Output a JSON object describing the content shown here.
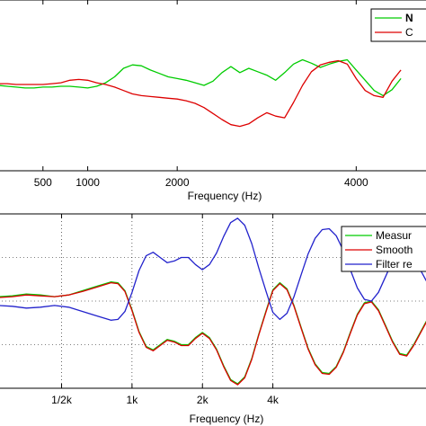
{
  "chart_data": [
    {
      "type": "line",
      "xlabel": "Frequency (Hz)",
      "ylabel": "",
      "xlim": [
        0,
        4800
      ],
      "ylim": [
        -10,
        10
      ],
      "grid": false,
      "legend": "top-right",
      "x_ticks": [
        {
          "value": 500,
          "label": "500"
        },
        {
          "value": 1000,
          "label": "1000"
        },
        {
          "value": 2000,
          "label": "2000"
        },
        {
          "value": 4000,
          "label": "4000"
        }
      ],
      "series": [
        {
          "name": "N",
          "color": "#00cc00",
          "x": [
            0,
            100,
            200,
            300,
            400,
            500,
            600,
            700,
            800,
            900,
            1000,
            1100,
            1200,
            1300,
            1400,
            1500,
            1600,
            1700,
            1800,
            1900,
            2000,
            2100,
            2200,
            2300,
            2400,
            2500,
            2600,
            2700,
            2800,
            2900,
            3000,
            3100,
            3200,
            3300,
            3400,
            3500,
            3600,
            3700,
            3800,
            3900,
            4000,
            4100,
            4200,
            4300,
            4400,
            4500
          ],
          "y": [
            0,
            -0.1,
            -0.2,
            -0.3,
            -0.3,
            -0.2,
            -0.2,
            -0.1,
            -0.1,
            -0.2,
            -0.3,
            -0.1,
            0.3,
            1.0,
            2.0,
            2.4,
            2.3,
            1.8,
            1.4,
            1.0,
            0.8,
            0.6,
            0.3,
            0.0,
            0.5,
            1.5,
            2.2,
            1.5,
            2.0,
            1.6,
            1.2,
            0.6,
            1.5,
            2.5,
            3.0,
            2.6,
            2.1,
            2.5,
            2.8,
            3.0,
            1.8,
            0.6,
            -0.6,
            -1.2,
            -0.5,
            0.8
          ]
        },
        {
          "name": "C",
          "color": "#dd0000",
          "x": [
            0,
            100,
            200,
            300,
            400,
            500,
            600,
            700,
            800,
            900,
            1000,
            1100,
            1200,
            1300,
            1400,
            1500,
            1600,
            1700,
            1800,
            1900,
            2000,
            2100,
            2200,
            2300,
            2400,
            2500,
            2600,
            2700,
            2800,
            2900,
            3000,
            3100,
            3200,
            3300,
            3400,
            3500,
            3600,
            3700,
            3800,
            3900,
            4000,
            4100,
            4200,
            4300,
            4400,
            4500
          ],
          "y": [
            0.2,
            0.2,
            0.1,
            0.1,
            0.1,
            0.1,
            0.2,
            0.3,
            0.6,
            0.7,
            0.6,
            0.3,
            0.1,
            -0.2,
            -0.6,
            -1.0,
            -1.2,
            -1.3,
            -1.4,
            -1.5,
            -1.6,
            -1.8,
            -2.1,
            -2.6,
            -3.3,
            -4.0,
            -4.6,
            -4.8,
            -4.5,
            -3.8,
            -3.2,
            -3.6,
            -3.8,
            -2.0,
            0.0,
            1.6,
            2.4,
            2.7,
            2.9,
            2.5,
            0.8,
            -0.6,
            -1.2,
            -1.4,
            0.5,
            1.8
          ]
        }
      ]
    },
    {
      "type": "line",
      "xlabel": "Frequency (Hz)",
      "ylabel": "",
      "xlim": [
        0.1,
        6.2
      ],
      "ylim": [
        -10,
        10
      ],
      "grid": true,
      "legend": "top-right",
      "x_ticks": [
        {
          "value": 1.0,
          "label": "1/2k"
        },
        {
          "value": 2.0,
          "label": "1k"
        },
        {
          "value": 3.0,
          "label": "2k"
        },
        {
          "value": 4.0,
          "label": "4k"
        }
      ],
      "series": [
        {
          "name": "Measur",
          "color": "#00cc00",
          "x": [
            0.1,
            0.3,
            0.5,
            0.7,
            0.9,
            1.1,
            1.3,
            1.5,
            1.7,
            1.8,
            1.9,
            2.0,
            2.1,
            2.2,
            2.3,
            2.4,
            2.5,
            2.6,
            2.7,
            2.8,
            2.9,
            3.0,
            3.1,
            3.2,
            3.3,
            3.4,
            3.5,
            3.6,
            3.7,
            3.8,
            3.9,
            4.0,
            4.1,
            4.2,
            4.3,
            4.4,
            4.5,
            4.6,
            4.7,
            4.8,
            4.9,
            5.0,
            5.1,
            5.2,
            5.3,
            5.4,
            5.5,
            5.6,
            5.7,
            5.8,
            5.9,
            6.0,
            6.2
          ],
          "y": [
            0.5,
            0.6,
            0.8,
            0.7,
            0.5,
            0.7,
            1.2,
            1.7,
            2.2,
            2.1,
            1.2,
            -1.0,
            -3.5,
            -5.2,
            -5.6,
            -5.0,
            -4.4,
            -4.6,
            -5.0,
            -5.0,
            -4.2,
            -3.6,
            -4.2,
            -5.5,
            -7.4,
            -9.0,
            -9.5,
            -8.7,
            -6.6,
            -3.8,
            -1.2,
            1.3,
            2.1,
            1.4,
            -0.5,
            -3.0,
            -5.4,
            -7.2,
            -8.2,
            -8.3,
            -7.5,
            -5.8,
            -3.6,
            -1.5,
            -0.2,
            0.0,
            -1.0,
            -2.8,
            -4.6,
            -6.0,
            -6.2,
            -5.0,
            -2.0
          ]
        },
        {
          "name": "Smooth",
          "color": "#dd0000",
          "x": [
            0.1,
            0.3,
            0.5,
            0.7,
            0.9,
            1.1,
            1.3,
            1.5,
            1.7,
            1.8,
            1.9,
            2.0,
            2.1,
            2.2,
            2.3,
            2.4,
            2.5,
            2.6,
            2.7,
            2.8,
            2.9,
            3.0,
            3.1,
            3.2,
            3.3,
            3.4,
            3.5,
            3.6,
            3.7,
            3.8,
            3.9,
            4.0,
            4.1,
            4.2,
            4.3,
            4.4,
            4.5,
            4.6,
            4.7,
            4.8,
            4.9,
            5.0,
            5.1,
            5.2,
            5.3,
            5.4,
            5.5,
            5.6,
            5.7,
            5.8,
            5.9,
            6.0,
            6.2
          ],
          "y": [
            0.4,
            0.5,
            0.7,
            0.6,
            0.5,
            0.7,
            1.1,
            1.6,
            2.1,
            2.0,
            1.1,
            -1.1,
            -3.6,
            -5.3,
            -5.7,
            -5.1,
            -4.5,
            -4.7,
            -5.1,
            -5.1,
            -4.3,
            -3.7,
            -4.3,
            -5.6,
            -7.5,
            -9.1,
            -9.6,
            -8.8,
            -6.7,
            -3.9,
            -1.3,
            1.2,
            2.0,
            1.3,
            -0.6,
            -3.1,
            -5.5,
            -7.3,
            -8.3,
            -8.4,
            -7.6,
            -5.9,
            -3.7,
            -1.6,
            -0.3,
            -0.1,
            -1.1,
            -2.9,
            -4.7,
            -6.1,
            -6.3,
            -5.1,
            -2.1
          ]
        },
        {
          "name": "Filter re",
          "color": "#2222cc",
          "x": [
            0.1,
            0.3,
            0.5,
            0.7,
            0.9,
            1.1,
            1.3,
            1.5,
            1.7,
            1.8,
            1.9,
            2.0,
            2.1,
            2.2,
            2.3,
            2.4,
            2.5,
            2.6,
            2.7,
            2.8,
            2.9,
            3.0,
            3.1,
            3.2,
            3.3,
            3.4,
            3.5,
            3.6,
            3.7,
            3.8,
            3.9,
            4.0,
            4.1,
            4.2,
            4.3,
            4.4,
            4.5,
            4.6,
            4.7,
            4.8,
            4.9,
            5.0,
            5.1,
            5.2,
            5.3,
            5.4,
            5.5,
            5.6,
            5.7,
            5.8,
            5.9,
            6.0,
            6.2
          ],
          "y": [
            -0.5,
            -0.6,
            -0.8,
            -0.7,
            -0.5,
            -0.7,
            -1.2,
            -1.7,
            -2.2,
            -2.1,
            -1.2,
            1.0,
            3.5,
            5.2,
            5.6,
            5.0,
            4.4,
            4.6,
            5.0,
            5.0,
            4.2,
            3.6,
            4.2,
            5.5,
            7.4,
            9.0,
            9.5,
            8.7,
            6.6,
            3.8,
            1.2,
            -1.3,
            -2.1,
            -1.4,
            0.5,
            3.0,
            5.4,
            7.2,
            8.2,
            8.3,
            7.5,
            5.8,
            3.6,
            1.5,
            0.2,
            0.0,
            1.0,
            2.8,
            4.6,
            6.0,
            6.2,
            5.0,
            2.0
          ]
        }
      ]
    }
  ]
}
